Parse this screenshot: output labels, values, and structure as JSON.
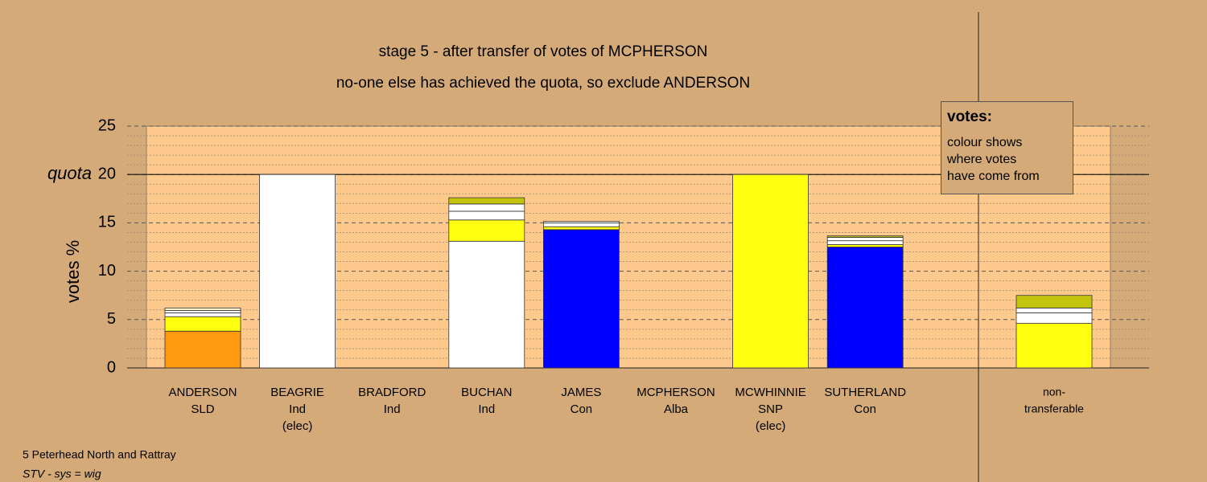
{
  "chart_data": {
    "type": "stacked-bar",
    "title": "stage 5 - after transfer of votes of MCPHERSON",
    "subtitle": "no-one else has achieved the quota, so exclude ANDERSON",
    "ylabel": "votes %",
    "ylim": [
      0,
      25
    ],
    "yticks": [
      0,
      5,
      10,
      15,
      20,
      25
    ],
    "minor_yticks": [
      1,
      2,
      3,
      4,
      6,
      7,
      8,
      9,
      11,
      12,
      13,
      14,
      16,
      17,
      18,
      19,
      21,
      22,
      23,
      24
    ],
    "quota": {
      "label": "quota",
      "value": 20
    },
    "categories": [
      {
        "label": [
          "ANDERSON",
          "SLD"
        ],
        "segments": [
          {
            "value": 3.8,
            "color": "#ff9910"
          },
          {
            "value": 1.5,
            "color": "#ffff10"
          },
          {
            "value": 0.4,
            "color": "#ffffff"
          },
          {
            "value": 0.25,
            "color": "#ffffff"
          },
          {
            "value": 0.25,
            "color": "#fff6d0"
          }
        ]
      },
      {
        "label": [
          "BEAGRIE",
          "Ind",
          "(elec)"
        ],
        "segments": [
          {
            "value": 20,
            "color": "#ffffff"
          }
        ]
      },
      {
        "label": [
          "BRADFORD",
          "Ind"
        ],
        "segments": [
          {
            "value": 0,
            "color": "#ffffff"
          }
        ]
      },
      {
        "label": [
          "BUCHAN",
          "Ind"
        ],
        "segments": [
          {
            "value": 13.1,
            "color": "#ffffff"
          },
          {
            "value": 2.2,
            "color": "#ffff10"
          },
          {
            "value": 0.9,
            "color": "#ffffff"
          },
          {
            "value": 0.75,
            "color": "#ffffff"
          },
          {
            "value": 0.65,
            "color": "#c4c410"
          }
        ]
      },
      {
        "label": [
          "JAMES",
          "Con"
        ],
        "segments": [
          {
            "value": 14.3,
            "color": "#0000ff"
          },
          {
            "value": 0.3,
            "color": "#ffff10"
          },
          {
            "value": 0.4,
            "color": "#ffffff"
          },
          {
            "value": 0.15,
            "color": "#ffffff"
          }
        ]
      },
      {
        "label": [
          "MCPHERSON",
          "Alba"
        ],
        "segments": [
          {
            "value": 0,
            "color": "#c4c410"
          }
        ]
      },
      {
        "label": [
          "MCWHINNIE",
          "SNP",
          "(elec)"
        ],
        "segments": [
          {
            "value": 20,
            "color": "#ffff10"
          }
        ]
      },
      {
        "label": [
          "SUTHERLAND",
          "Con"
        ],
        "segments": [
          {
            "value": 12.5,
            "color": "#0000ff"
          },
          {
            "value": 0.25,
            "color": "#ffff10"
          },
          {
            "value": 0.4,
            "color": "#ffffff"
          },
          {
            "value": 0.35,
            "color": "#ffffff"
          },
          {
            "value": 0.15,
            "color": "#c4c410"
          }
        ]
      }
    ],
    "non_transferable": {
      "label": [
        "non-",
        "transferable"
      ],
      "segments": [
        {
          "value": 4.6,
          "color": "#ffff10"
        },
        {
          "value": 1.1,
          "color": "#ffffff"
        },
        {
          "value": 0.5,
          "color": "#ffffff"
        },
        {
          "value": 1.3,
          "color": "#c4c410"
        }
      ]
    },
    "note": {
      "title": "votes:",
      "lines": [
        "colour shows",
        "where votes",
        "have come from"
      ]
    },
    "footer": [
      "5 Peterhead North and Rattray",
      "STV - sys = wig"
    ]
  }
}
